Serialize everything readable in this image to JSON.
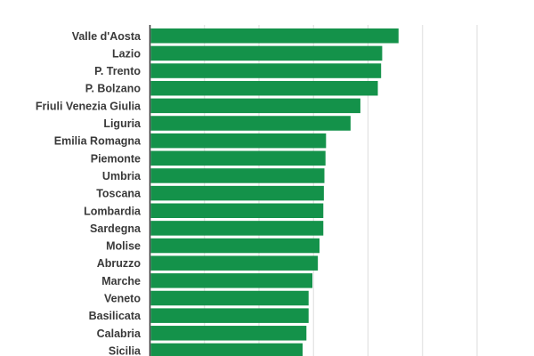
{
  "chart_data": {
    "type": "bar",
    "orientation": "horizontal",
    "title": "",
    "xlabel": "",
    "ylabel": "",
    "categories": [
      "Valle d'Aosta",
      "Lazio",
      "P. Trento",
      "P. Bolzano",
      "Friuli Venezia Giulia",
      "Liguria",
      "Emilia Romagna",
      "Piemonte",
      "Umbria",
      "Toscana",
      "Lombardia",
      "Sardegna",
      "Molise",
      "Abruzzo",
      "Marche",
      "Veneto",
      "Basilicata",
      "Calabria",
      "Sicilia"
    ],
    "values": [
      45.6,
      42.6,
      42.4,
      41.8,
      38.6,
      36.8,
      32.3,
      32.2,
      32.0,
      31.9,
      31.8,
      31.8,
      31.1,
      30.8,
      29.8,
      29.1,
      29.1,
      28.7,
      28.0
    ],
    "xlim": [
      0,
      60
    ],
    "x_gridlines": [
      0,
      10,
      20,
      30,
      40,
      50,
      60
    ],
    "grid": "vertical",
    "bar_color": "#14924a",
    "axis_color": "#333333",
    "grid_color": "#dddddd"
  }
}
